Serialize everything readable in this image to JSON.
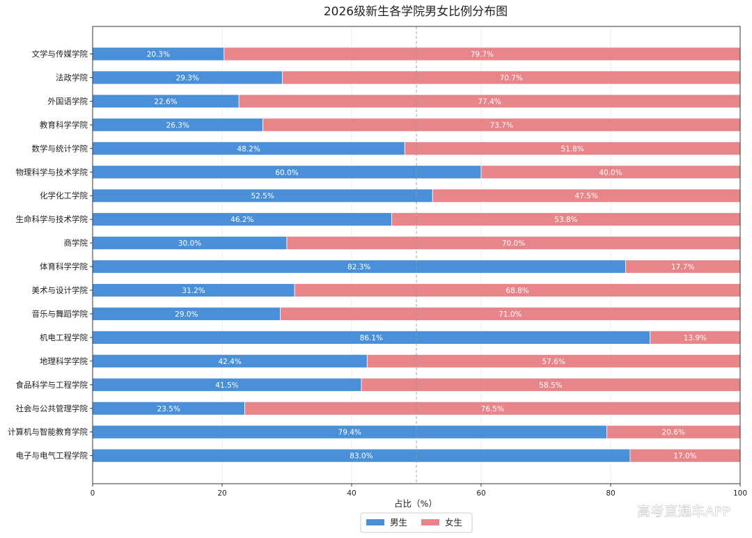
{
  "chart_data": {
    "type": "bar",
    "orientation": "horizontal",
    "stacked": true,
    "title": "2026级新生各学院男女比例分布图",
    "xlabel": "占比（%）",
    "ylabel": "",
    "xlim": [
      0,
      100
    ],
    "xticks": [
      0,
      20,
      40,
      60,
      80,
      100
    ],
    "reference_line": 50,
    "grid": true,
    "legend_position": "bottom-center",
    "categories": [
      "文学与传媒学院",
      "法政学院",
      "外国语学院",
      "教育科学学院",
      "数学与统计学院",
      "物理科学与技术学院",
      "化学化工学院",
      "生命科学与技术学院",
      "商学院",
      "体育科学学院",
      "美术与设计学院",
      "音乐与舞蹈学院",
      "机电工程学院",
      "地理科学学院",
      "食品科学与工程学院",
      "社会与公共管理学院",
      "计算机与智能教育学院",
      "电子与电气工程学院"
    ],
    "series": [
      {
        "name": "男生",
        "color": "#4a90d9",
        "values": [
          20.3,
          29.3,
          22.6,
          26.3,
          48.2,
          60.0,
          52.5,
          46.2,
          30.0,
          82.3,
          31.2,
          29.0,
          86.1,
          42.4,
          41.5,
          23.5,
          79.4,
          83.0
        ],
        "labels": [
          "20.3%",
          "29.3%",
          "22.6%",
          "26.3%",
          "48.2%",
          "60.0%",
          "52.5%",
          "46.2%",
          "30.0%",
          "82.3%",
          "31.2%",
          "29.0%",
          "86.1%",
          "42.4%",
          "41.5%",
          "23.5%",
          "79.4%",
          "83.0%"
        ]
      },
      {
        "name": "女生",
        "color": "#e8858a",
        "values": [
          79.7,
          70.7,
          77.4,
          73.7,
          51.8,
          40.0,
          47.5,
          53.8,
          70.0,
          17.7,
          68.8,
          71.0,
          13.9,
          57.6,
          58.5,
          76.5,
          20.6,
          17.0
        ],
        "labels": [
          "79.7%",
          "70.7%",
          "77.4%",
          "73.7%",
          "51.8%",
          "40.0%",
          "47.5%",
          "53.8%",
          "70.0%",
          "17.7%",
          "68.8%",
          "71.0%",
          "13.9%",
          "57.6%",
          "58.5%",
          "76.5%",
          "20.6%",
          "17.0%"
        ]
      }
    ]
  },
  "watermark": "高考直通车APP"
}
